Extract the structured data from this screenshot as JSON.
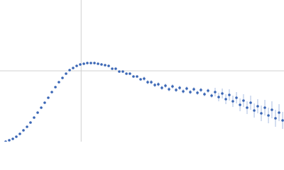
{
  "chart_data": {
    "type": "scatter",
    "x": [
      0.07,
      0.114,
      0.158,
      0.201,
      0.245,
      0.289,
      0.333,
      0.376,
      0.42,
      0.464,
      0.508,
      0.551,
      0.595,
      0.639,
      0.683,
      0.726,
      0.77,
      0.814,
      0.858,
      0.901,
      0.945,
      0.989,
      1.033,
      1.076,
      1.12,
      1.164,
      1.208,
      1.251,
      1.295,
      1.339,
      1.383,
      1.426,
      1.47,
      1.514,
      1.558,
      1.601,
      1.645,
      1.689,
      1.733,
      1.776,
      1.82,
      1.864,
      1.908,
      1.951,
      1.995,
      2.039,
      2.083,
      2.126,
      2.17,
      2.214,
      2.258,
      2.301,
      2.345,
      2.389,
      2.433,
      2.476,
      2.52,
      2.564,
      2.608,
      2.651,
      2.695,
      2.739,
      2.783,
      2.826,
      2.87,
      2.914,
      2.958,
      3.001,
      3.045,
      3.089,
      3.133,
      3.176,
      3.22,
      3.264,
      3.308,
      3.351,
      3.395,
      3.439,
      3.483
    ],
    "values": [
      0.0,
      0.02,
      0.04,
      0.07,
      0.11,
      0.16,
      0.21,
      0.27,
      0.34,
      0.41,
      0.48,
      0.55,
      0.62,
      0.7,
      0.77,
      0.84,
      0.9,
      0.96,
      1.01,
      1.04,
      1.07,
      1.09,
      1.1,
      1.11,
      1.11,
      1.11,
      1.1,
      1.09,
      1.08,
      1.07,
      1.03,
      1.03,
      0.99,
      0.99,
      0.96,
      0.96,
      0.92,
      0.92,
      0.88,
      0.89,
      0.84,
      0.84,
      0.8,
      0.81,
      0.76,
      0.79,
      0.74,
      0.78,
      0.73,
      0.76,
      0.71,
      0.75,
      0.7,
      0.74,
      0.69,
      0.73,
      0.67,
      0.72,
      0.65,
      0.7,
      0.63,
      0.68,
      0.6,
      0.66,
      0.57,
      0.62,
      0.52,
      0.58,
      0.48,
      0.55,
      0.44,
      0.5,
      0.4,
      0.48,
      0.37,
      0.45,
      0.33,
      0.41,
      0.3
    ],
    "errors": [
      0.005,
      0.005,
      0.005,
      0.005,
      0.005,
      0.005,
      0.005,
      0.005,
      0.005,
      0.005,
      0.005,
      0.005,
      0.005,
      0.005,
      0.005,
      0.005,
      0.005,
      0.005,
      0.005,
      0.01,
      0.01,
      0.01,
      0.01,
      0.01,
      0.01,
      0.01,
      0.01,
      0.01,
      0.01,
      0.01,
      0.01,
      0.01,
      0.01,
      0.01,
      0.01,
      0.01,
      0.01,
      0.01,
      0.01,
      0.03,
      0.03,
      0.03,
      0.03,
      0.03,
      0.03,
      0.03,
      0.03,
      0.03,
      0.03,
      0.03,
      0.03,
      0.03,
      0.03,
      0.03,
      0.03,
      0.03,
      0.03,
      0.03,
      0.03,
      0.06,
      0.06,
      0.07,
      0.07,
      0.08,
      0.08,
      0.08,
      0.09,
      0.09,
      0.09,
      0.1,
      0.1,
      0.1,
      0.11,
      0.11,
      0.11,
      0.12,
      0.12,
      0.12,
      0.12
    ],
    "color": "#3a66b5",
    "error_color": "#a9bde2",
    "xlim": [
      0,
      3.5
    ],
    "ylim": [
      0,
      2
    ],
    "xticks": [
      1
    ],
    "yticks": [
      1
    ],
    "grid": true,
    "tick_labels": false
  }
}
